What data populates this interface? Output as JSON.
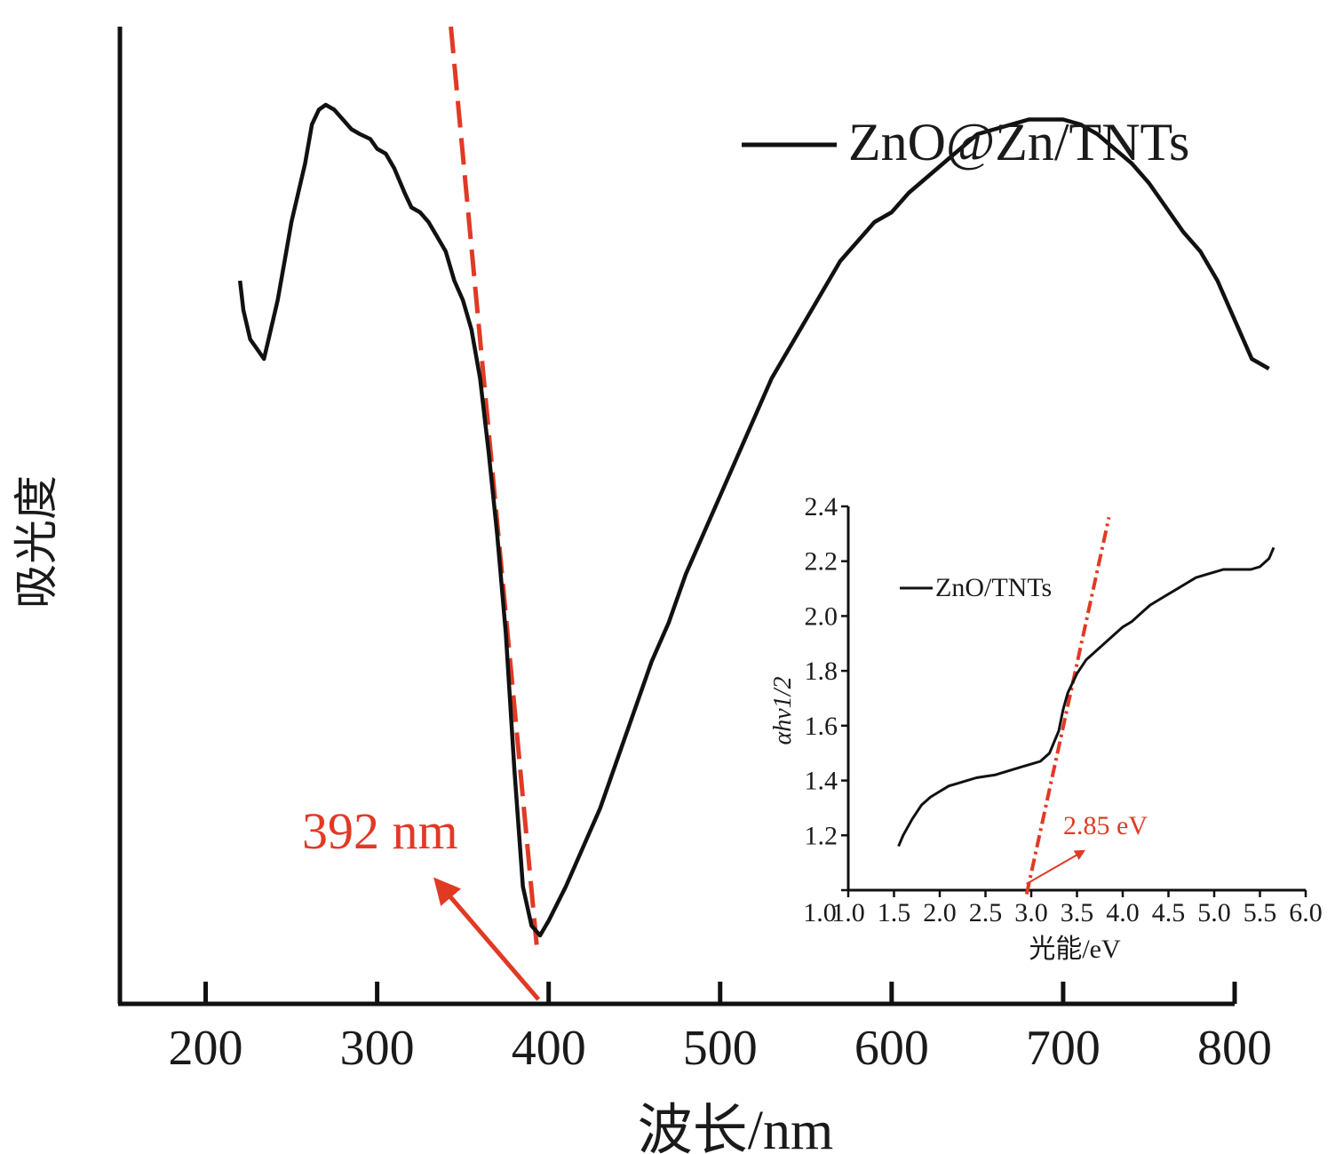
{
  "chart_data": [
    {
      "type": "line",
      "xlabel": "波长/nm",
      "ylabel": "吸光度",
      "xlim": [
        150,
        800
      ],
      "xticks": [
        200,
        300,
        400,
        500,
        600,
        700,
        800
      ],
      "ylim": [
        0,
        1
      ],
      "yticks_shown": false,
      "legend": "top-right",
      "series": [
        {
          "name": "ZnO@Zn/TNTs",
          "color": "#111111",
          "x": [
            220,
            222,
            226,
            230,
            234,
            238,
            242,
            246,
            250,
            254,
            258,
            262,
            266,
            270,
            275,
            280,
            285,
            290,
            296,
            300,
            305,
            310,
            316,
            320,
            325,
            330,
            335,
            340,
            345,
            350,
            355,
            360,
            365,
            370,
            375,
            380,
            385,
            390,
            395,
            400,
            410,
            420,
            430,
            440,
            450,
            460,
            470,
            480,
            490,
            500,
            510,
            520,
            530,
            540,
            550,
            560,
            570,
            580,
            590,
            600,
            610,
            620,
            630,
            640,
            650,
            660,
            670,
            680,
            690,
            700,
            710,
            720,
            730,
            740,
            750,
            760,
            770,
            780,
            790,
            800,
            810,
            820
          ],
          "y": [
            0.74,
            0.71,
            0.68,
            0.67,
            0.66,
            0.69,
            0.72,
            0.76,
            0.8,
            0.83,
            0.86,
            0.9,
            0.915,
            0.92,
            0.915,
            0.905,
            0.895,
            0.89,
            0.885,
            0.875,
            0.87,
            0.855,
            0.83,
            0.815,
            0.81,
            0.8,
            0.785,
            0.77,
            0.74,
            0.72,
            0.69,
            0.64,
            0.565,
            0.48,
            0.38,
            0.24,
            0.12,
            0.08,
            0.07,
            0.085,
            0.12,
            0.16,
            0.2,
            0.25,
            0.3,
            0.35,
            0.39,
            0.44,
            0.48,
            0.52,
            0.56,
            0.6,
            0.64,
            0.67,
            0.7,
            0.73,
            0.76,
            0.78,
            0.8,
            0.81,
            0.83,
            0.845,
            0.86,
            0.875,
            0.89,
            0.895,
            0.9,
            0.905,
            0.905,
            0.905,
            0.9,
            0.89,
            0.875,
            0.86,
            0.84,
            0.815,
            0.79,
            0.77,
            0.74,
            0.7,
            0.66,
            0.65
          ]
        }
      ],
      "tangent": {
        "color": "#e03a25",
        "style": "dashed",
        "x": [
          343,
          393
        ],
        "y": [
          1.0,
          0.06
        ]
      },
      "annotation": {
        "text": "392 nm",
        "x": 392,
        "color": "#e03a25"
      }
    },
    {
      "type": "line",
      "xlabel": "光能/eV",
      "ylabel": "αhv1/2",
      "xlim": [
        1.0,
        6.0
      ],
      "ylim": [
        1.0,
        2.4
      ],
      "xticks": [
        "1.0",
        "1.5",
        "2.0",
        "2.5",
        "3.0",
        "3.5",
        "4.0",
        "4.5",
        "5.0",
        "5.5",
        "6.0"
      ],
      "yticks": [
        "1.0",
        "1.2",
        "1.4",
        "1.6",
        "1.8",
        "2.0",
        "2.2",
        "2.4"
      ],
      "legend": "top-left",
      "series": [
        {
          "name": "ZnO/TNTs",
          "color": "#111111",
          "x": [
            1.55,
            1.6,
            1.7,
            1.8,
            1.9,
            2.0,
            2.1,
            2.2,
            2.3,
            2.4,
            2.5,
            2.6,
            2.7,
            2.8,
            2.9,
            3.0,
            3.1,
            3.2,
            3.3,
            3.35,
            3.4,
            3.5,
            3.6,
            3.7,
            3.8,
            3.9,
            4.0,
            4.1,
            4.2,
            4.3,
            4.4,
            4.5,
            4.6,
            4.7,
            4.8,
            4.9,
            5.0,
            5.1,
            5.2,
            5.3,
            5.4,
            5.5,
            5.6,
            5.65
          ],
          "y": [
            1.16,
            1.2,
            1.26,
            1.31,
            1.34,
            1.36,
            1.38,
            1.39,
            1.4,
            1.41,
            1.415,
            1.42,
            1.43,
            1.44,
            1.45,
            1.46,
            1.47,
            1.5,
            1.58,
            1.66,
            1.72,
            1.79,
            1.84,
            1.87,
            1.9,
            1.93,
            1.96,
            1.98,
            2.01,
            2.04,
            2.06,
            2.08,
            2.1,
            2.12,
            2.14,
            2.15,
            2.16,
            2.17,
            2.17,
            2.17,
            2.17,
            2.18,
            2.21,
            2.25
          ]
        }
      ],
      "tangent": {
        "color": "#e03a25",
        "style": "dash-dot",
        "x": [
          2.95,
          3.85
        ],
        "y": [
          0.985,
          2.36
        ]
      },
      "annotation": {
        "text": "2.85 eV",
        "x": 2.85,
        "color": "#e03a25"
      }
    }
  ]
}
